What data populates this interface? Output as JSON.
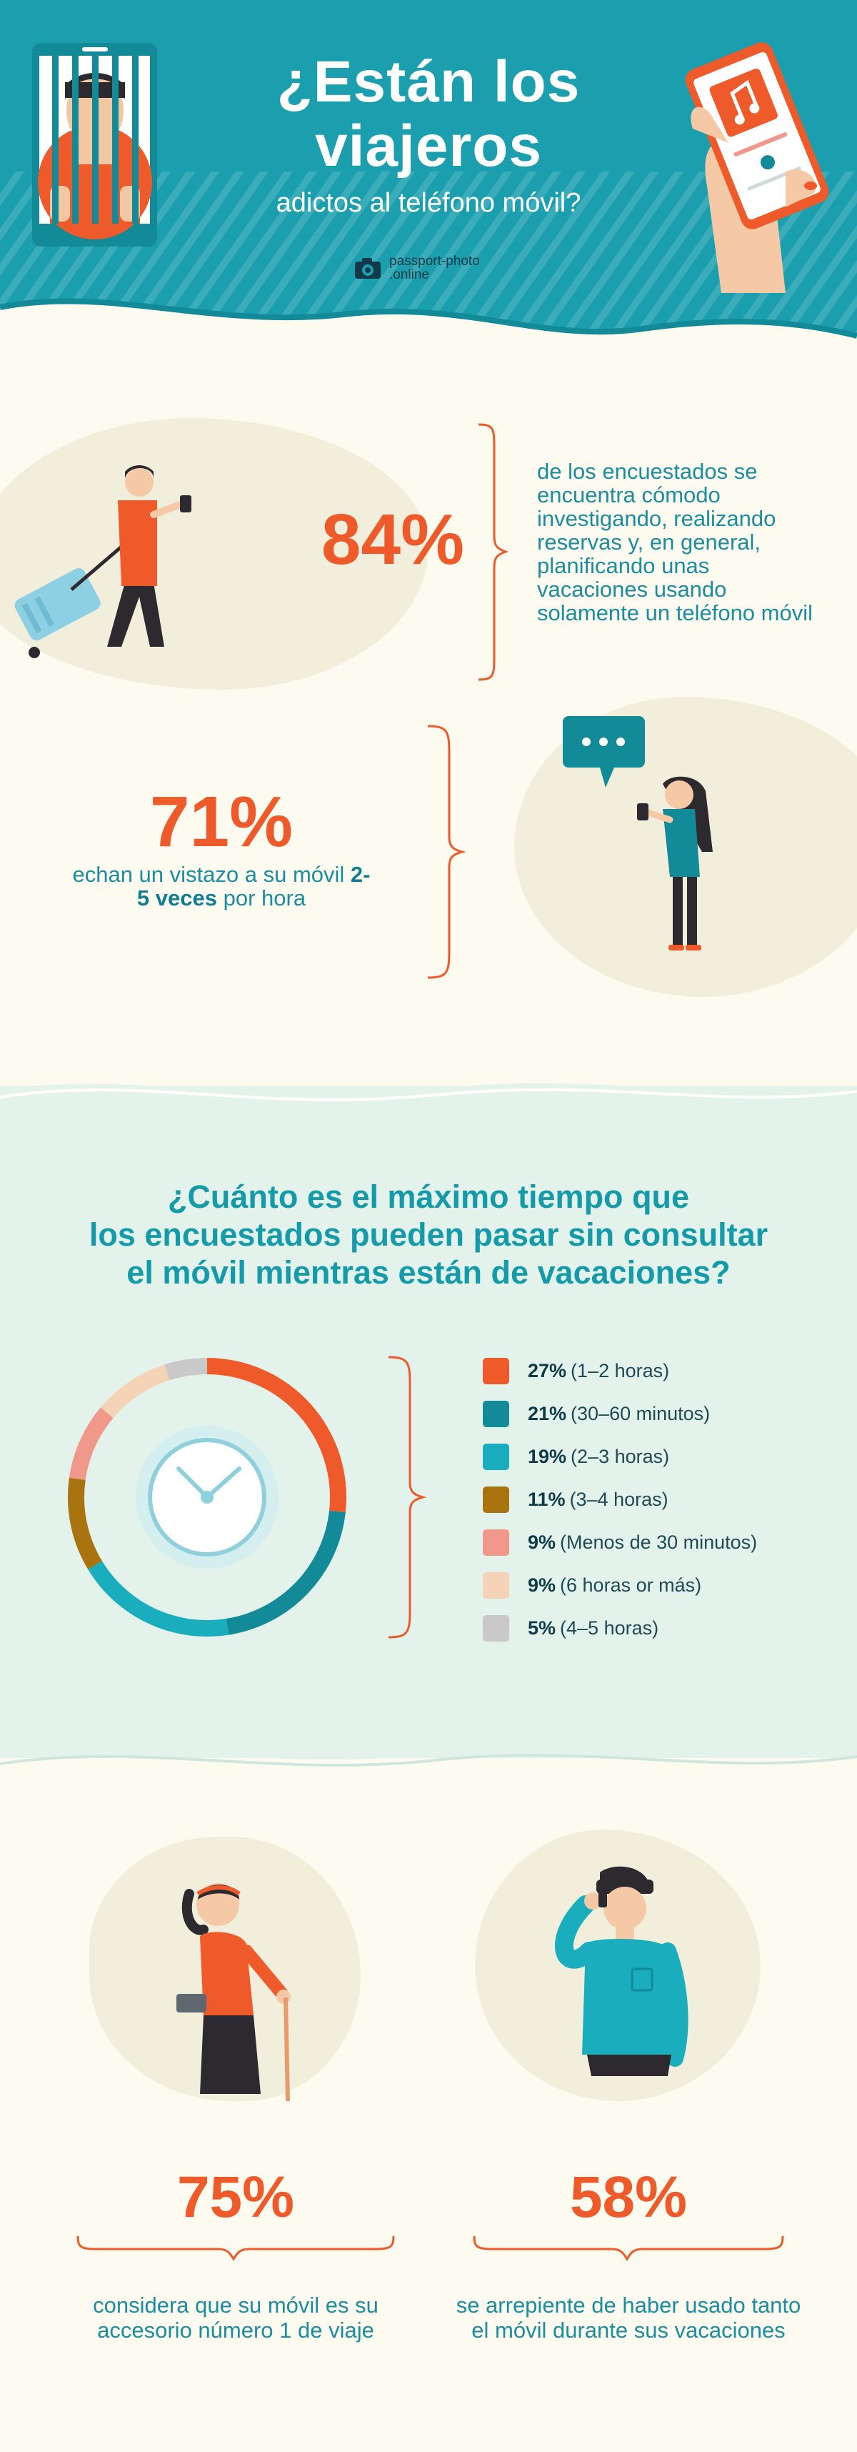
{
  "header": {
    "title_line1": "¿Están los",
    "title_line2": "viajeros",
    "subtitle": "adictos al teléfono móvil?",
    "brand_line1": "passport-photo",
    "brand_line2": ".online",
    "brand_icon": "camera-icon"
  },
  "stats": {
    "s1": {
      "value": "84%",
      "text": "de los encuestados se encuentra cómodo investigando, realizando reservas y, en general, planificando unas vacaciones usando solamente un teléfono móvil"
    },
    "s2": {
      "value": "71%",
      "text_pre": "echan un vistazo a su móvil ",
      "text_bold": "2-5 veces",
      "text_post": " por hora"
    }
  },
  "question": {
    "line1": "¿Cuánto es el máximo tiempo que",
    "line2": "los encuestados pueden pasar sin consultar",
    "line3": "el móvil mientras están de vacaciones?"
  },
  "chart_data": {
    "type": "pie",
    "donut": true,
    "center_icon": "clock-icon",
    "slices": [
      {
        "value": 27,
        "pct_label": "27%",
        "label": "(1–2 horas)",
        "color": "#ef5a2a"
      },
      {
        "value": 21,
        "pct_label": "21%",
        "label": "(30–60 minutos)",
        "color": "#138a98"
      },
      {
        "value": 19,
        "pct_label": "19%",
        "label": "(2–3 horas)",
        "color": "#1aadbd"
      },
      {
        "value": 11,
        "pct_label": "11%",
        "label": "(3–4 horas)",
        "color": "#a9740f"
      },
      {
        "value": 9,
        "pct_label": "9%",
        "label": "(Menos de 30 minutos)",
        "color": "#f0998a"
      },
      {
        "value": 9,
        "pct_label": "9%",
        "label": "(6 horas or más)",
        "color": "#f5d3b6"
      },
      {
        "value": 5,
        "pct_label": "5%",
        "label": "(4–5 horas)",
        "color": "#c9c9c9"
      }
    ]
  },
  "bottom": {
    "b1": {
      "value": "75%",
      "line1": "considera que su móvil es su",
      "line2": "accesorio número 1 de viaje"
    },
    "b2": {
      "value": "58%",
      "line1": "se arrepiente de haber usado tanto",
      "line2": "el móvil durante sus vacaciones"
    }
  },
  "colors": {
    "accent": "#ef5a2a",
    "teal": "#1b9fae",
    "background": "#fdfbef",
    "section_bg": "#e3f3ec"
  }
}
